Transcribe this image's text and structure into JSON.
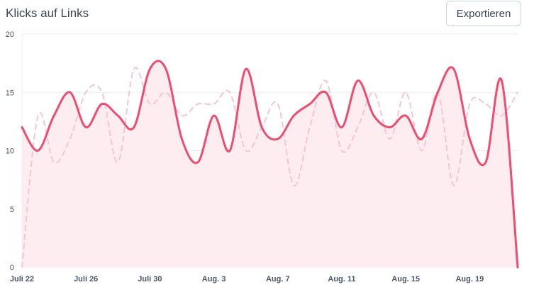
{
  "header": {
    "title": "Klicks auf Links",
    "export_label": "Exportieren"
  },
  "colors": {
    "primary_line": "#ee4d6f",
    "primary_fill": "#fdedf0",
    "secondary_line": "#f5c6d1",
    "grid": "#eeeeee"
  },
  "chart_data": {
    "type": "area",
    "title": "Klicks auf Links",
    "ylim": [
      0,
      20
    ],
    "yticks": [
      0,
      5,
      10,
      15,
      20
    ],
    "x": [
      "Juli 22",
      "Juli 23",
      "Juli 24",
      "Juli 25",
      "Juli 26",
      "Juli 27",
      "Juli 28",
      "Juli 29",
      "Juli 30",
      "Juli 31",
      "Aug. 1",
      "Aug. 2",
      "Aug. 3",
      "Aug. 4",
      "Aug. 5",
      "Aug. 6",
      "Aug. 7",
      "Aug. 8",
      "Aug. 9",
      "Aug. 10",
      "Aug. 11",
      "Aug. 12",
      "Aug. 13",
      "Aug. 14",
      "Aug. 15",
      "Aug. 16",
      "Aug. 17",
      "Aug. 18",
      "Aug. 19",
      "Aug. 20",
      "Aug. 21",
      "Aug. 22"
    ],
    "xtick_labels": [
      "Juli 22",
      "Juli 26",
      "Juli 30",
      "Aug. 3",
      "Aug. 7",
      "Aug. 11",
      "Aug. 15",
      "Aug. 19"
    ],
    "grid": true,
    "series": [
      {
        "style": "solid",
        "values": [
          12,
          10,
          13,
          15,
          12,
          14,
          13,
          12,
          17,
          17,
          11,
          9,
          13,
          10,
          17,
          12,
          11,
          13,
          14,
          15,
          12,
          16,
          13,
          12,
          13,
          11,
          15,
          17,
          11,
          9,
          16,
          0
        ]
      },
      {
        "style": "dashed",
        "values": [
          0,
          13,
          9,
          11,
          15,
          15,
          9,
          17,
          14,
          15,
          13,
          14,
          14,
          15,
          10,
          12,
          14,
          7,
          12,
          16,
          10,
          12,
          15,
          11,
          15,
          10,
          15,
          7,
          14,
          14,
          13,
          15
        ]
      }
    ]
  }
}
